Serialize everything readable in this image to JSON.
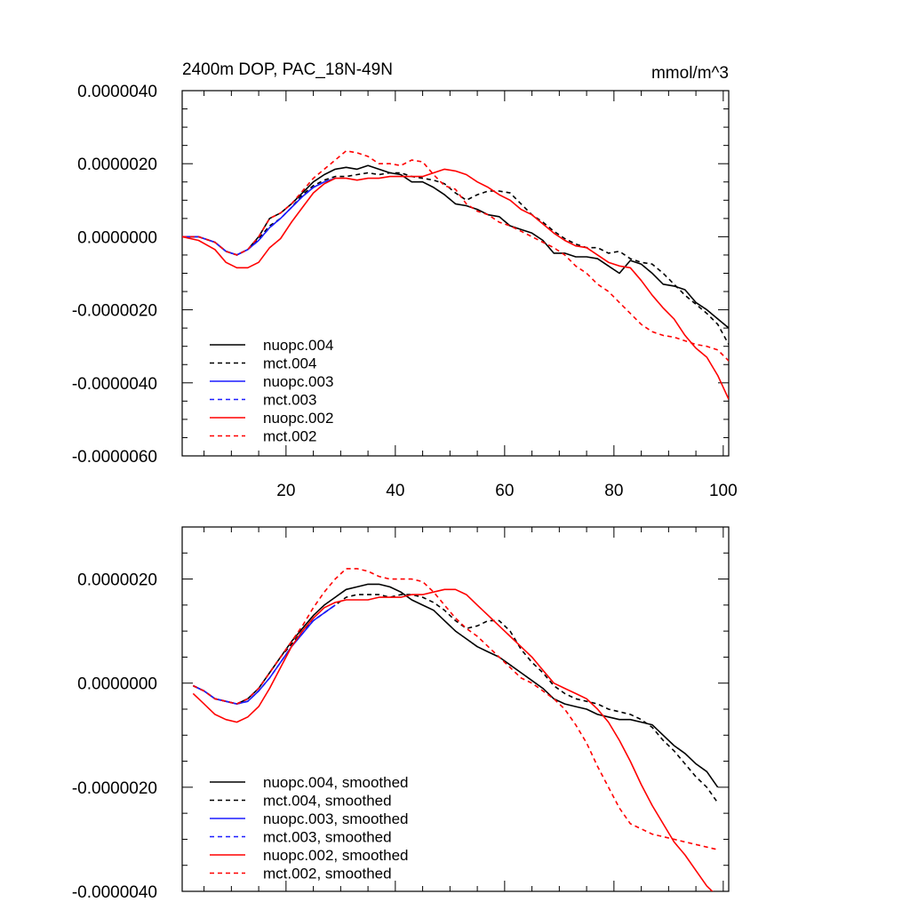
{
  "chart_data": [
    {
      "type": "line",
      "title": "2400m DOP, PAC_18N-49N",
      "units": "mmol/m^3",
      "xlabel": "",
      "ylabel": "",
      "xlim": [
        1,
        101
      ],
      "ylim": [
        -6e-06,
        4e-06
      ],
      "xticks": [
        20,
        40,
        60,
        80,
        100
      ],
      "xtick_labels": [
        "20",
        "40",
        "60",
        "80",
        "100"
      ],
      "yticks": [
        -6e-06,
        -4e-06,
        -2e-06,
        0,
        2e-06,
        4e-06
      ],
      "ytick_labels": [
        "-0.0000060",
        "-0.0000040",
        "-0.0000020",
        "0.0000000",
        "0.0000020",
        "0.0000040"
      ],
      "legend_position": "lower-left",
      "series": [
        {
          "name": "nuopc.004",
          "color": "#000000",
          "dash": "solid",
          "x": [
            1,
            4,
            7,
            9,
            11,
            13,
            15,
            17,
            19,
            21,
            23,
            25,
            27,
            29,
            31,
            33,
            35,
            37,
            39,
            41,
            43,
            45,
            47,
            49,
            51,
            53,
            55,
            57,
            59,
            61,
            63,
            65,
            67,
            69,
            71,
            73,
            75,
            77,
            79,
            81,
            83,
            85,
            87,
            89,
            91,
            93,
            95,
            97,
            99,
            101
          ],
          "values": [
            0,
            0,
            -1.5e-07,
            -4e-07,
            -5e-07,
            -3.5e-07,
            0,
            5e-07,
            6.5e-07,
            9e-07,
            1.2e-06,
            1.5e-06,
            1.7e-06,
            1.85e-06,
            1.9e-06,
            1.85e-06,
            1.95e-06,
            1.85e-06,
            1.75e-06,
            1.7e-06,
            1.5e-06,
            1.5e-06,
            1.35e-06,
            1.15e-06,
            9e-07,
            8.5e-07,
            7.5e-07,
            6e-07,
            5.5e-07,
            3e-07,
            2e-07,
            1e-07,
            -1e-07,
            -4.5e-07,
            -4.5e-07,
            -5.5e-07,
            -5.5e-07,
            -6e-07,
            -8e-07,
            -1e-06,
            -6.5e-07,
            -7.5e-07,
            -1e-06,
            -1.3e-06,
            -1.35e-06,
            -1.45e-06,
            -1.8e-06,
            -2e-06,
            -2.25e-06,
            -2.5e-06
          ]
        },
        {
          "name": "mct.004",
          "color": "#000000",
          "dash": "dash",
          "x": [
            1,
            4,
            7,
            9,
            11,
            13,
            15,
            17,
            19,
            21,
            23,
            25,
            27,
            29,
            31,
            33,
            35,
            37,
            39,
            41,
            43,
            45,
            47,
            49,
            51,
            53,
            55,
            57,
            59,
            61,
            63,
            65,
            67,
            69,
            71,
            73,
            75,
            77,
            79,
            81,
            83,
            85,
            87,
            89,
            91,
            93,
            95,
            97,
            99,
            101
          ],
          "values": [
            0,
            0,
            -1.5e-07,
            -4e-07,
            -5e-07,
            -3.5e-07,
            -5e-08,
            3e-07,
            5e-07,
            8e-07,
            1.15e-06,
            1.4e-06,
            1.55e-06,
            1.65e-06,
            1.65e-06,
            1.7e-06,
            1.75e-06,
            1.7e-06,
            1.75e-06,
            1.75e-06,
            1.65e-06,
            1.6e-06,
            1.55e-06,
            1.45e-06,
            1.2e-06,
            1e-06,
            1.15e-06,
            1.25e-06,
            1.25e-06,
            1.2e-06,
            9e-07,
            6e-07,
            4e-07,
            1.5e-07,
            -5e-08,
            -2e-07,
            -3e-07,
            -3e-07,
            -4.5e-07,
            -4e-07,
            -6e-07,
            -7e-07,
            -7.5e-07,
            -1e-06,
            -1.3e-06,
            -1.6e-06,
            -1.85e-06,
            -2.1e-06,
            -2.4e-06,
            -2.95e-06
          ]
        },
        {
          "name": "nuopc.003",
          "color": "#1c1cff",
          "dash": "solid",
          "x": [
            1,
            4,
            7,
            9,
            11,
            13,
            15,
            17,
            19,
            21,
            23,
            25,
            27,
            29
          ],
          "values": [
            0,
            0,
            -1.5e-07,
            -4e-07,
            -5e-07,
            -3.5e-07,
            -1e-07,
            2.5e-07,
            5e-07,
            8e-07,
            1.1e-06,
            1.35e-06,
            1.5e-06,
            1.6e-06
          ]
        },
        {
          "name": "mct.003",
          "color": "#1c1cff",
          "dash": "dash",
          "x": [
            1,
            4,
            7,
            9,
            11,
            13,
            15,
            17,
            19,
            21,
            23,
            25,
            27,
            29
          ],
          "values": [
            0,
            0,
            -1.5e-07,
            -4e-07,
            -5e-07,
            -3.5e-07,
            -1e-07,
            2.5e-07,
            5e-07,
            8e-07,
            1.1e-06,
            1.35e-06,
            1.5e-06,
            1.6e-06
          ]
        },
        {
          "name": "nuopc.002",
          "color": "#ff0000",
          "dash": "solid",
          "x": [
            1,
            4,
            7,
            9,
            11,
            13,
            15,
            17,
            19,
            21,
            23,
            25,
            27,
            29,
            31,
            33,
            35,
            37,
            39,
            41,
            43,
            45,
            47,
            49,
            51,
            53,
            55,
            57,
            59,
            61,
            63,
            65,
            67,
            69,
            71,
            73,
            75,
            77,
            79,
            81,
            83,
            85,
            87,
            89,
            91,
            93,
            95,
            97,
            99,
            101
          ],
          "values": [
            0,
            -1e-07,
            -3.5e-07,
            -7e-07,
            -8.5e-07,
            -8.5e-07,
            -7e-07,
            -3e-07,
            -5e-08,
            4e-07,
            8e-07,
            1.2e-06,
            1.45e-06,
            1.6e-06,
            1.6e-06,
            1.55e-06,
            1.6e-06,
            1.6e-06,
            1.65e-06,
            1.65e-06,
            1.65e-06,
            1.65e-06,
            1.75e-06,
            1.85e-06,
            1.8e-06,
            1.7e-06,
            1.5e-06,
            1.35e-06,
            1.15e-06,
            1e-06,
            7.5e-07,
            6e-07,
            3.5e-07,
            1e-07,
            -1e-07,
            -2.5e-07,
            -3e-07,
            -5e-07,
            -7e-07,
            -8e-07,
            -8.5e-07,
            -1.2e-06,
            -1.6e-06,
            -1.95e-06,
            -2.25e-06,
            -2.7e-06,
            -3.05e-06,
            -3.3e-06,
            -3.8e-06,
            -4.45e-06
          ]
        },
        {
          "name": "mct.002",
          "color": "#ff0000",
          "dash": "dash",
          "x": [
            1,
            4,
            7,
            9,
            11,
            13,
            15,
            17,
            19,
            21,
            23,
            25,
            27,
            29,
            31,
            33,
            35,
            37,
            39,
            41,
            43,
            45,
            47,
            49,
            51,
            53,
            55,
            57,
            59,
            61,
            63,
            65,
            67,
            69,
            71,
            73,
            75,
            77,
            79,
            81,
            83,
            85,
            87,
            89,
            91,
            93,
            95,
            97,
            99,
            101
          ],
          "values": [
            0,
            0,
            -1.5e-07,
            -4e-07,
            -5e-07,
            -3.5e-07,
            0,
            5e-07,
            6.5e-07,
            9e-07,
            1.25e-06,
            1.6e-06,
            1.85e-06,
            2.1e-06,
            2.35e-06,
            2.3e-06,
            2.2e-06,
            2e-06,
            2e-06,
            1.95e-06,
            2.1e-06,
            2.05e-06,
            1.7e-06,
            1.4e-06,
            1.3e-06,
            9e-07,
            7e-07,
            6e-07,
            4e-07,
            3e-07,
            1.5e-07,
            0,
            -1.5e-07,
            -3e-07,
            -5e-07,
            -8e-07,
            -1e-06,
            -1.3e-06,
            -1.5e-06,
            -1.8e-06,
            -2.1e-06,
            -2.4e-06,
            -2.6e-06,
            -2.7e-06,
            -2.75e-06,
            -2.85e-06,
            -2.95e-06,
            -3e-06,
            -3.1e-06,
            -3.4e-06
          ]
        }
      ]
    },
    {
      "type": "line",
      "title": "",
      "xlabel": "",
      "ylabel": "",
      "xlim": [
        1,
        101
      ],
      "ylim": [
        -4e-06,
        3e-06
      ],
      "xticks": [
        20,
        40,
        60,
        80,
        100
      ],
      "yticks": [
        -4e-06,
        -2e-06,
        0,
        2e-06
      ],
      "ytick_labels": [
        "-0.0000040",
        "-0.0000020",
        "0.0000000",
        "0.0000020"
      ],
      "legend_position": "lower-left",
      "series": [
        {
          "name": "nuopc.004, smoothed",
          "color": "#000000",
          "dash": "solid",
          "x": [
            3,
            5,
            7,
            9,
            11,
            13,
            15,
            17,
            19,
            21,
            23,
            25,
            27,
            29,
            31,
            33,
            35,
            37,
            39,
            41,
            43,
            45,
            47,
            49,
            51,
            53,
            55,
            57,
            59,
            61,
            63,
            65,
            67,
            69,
            71,
            73,
            75,
            77,
            79,
            81,
            83,
            85,
            87,
            89,
            91,
            93,
            95,
            97,
            99
          ],
          "values": [
            -5e-08,
            -1.5e-07,
            -3e-07,
            -3.5e-07,
            -4e-07,
            -3e-07,
            -1e-07,
            2e-07,
            5e-07,
            8e-07,
            1.05e-06,
            1.3e-06,
            1.5e-06,
            1.65e-06,
            1.8e-06,
            1.85e-06,
            1.9e-06,
            1.9e-06,
            1.85e-06,
            1.75e-06,
            1.6e-06,
            1.5e-06,
            1.4e-06,
            1.2e-06,
            1e-06,
            8.5e-07,
            7e-07,
            6e-07,
            5e-07,
            3.5e-07,
            2e-07,
            5e-08,
            -1e-07,
            -3e-07,
            -4e-07,
            -4.5e-07,
            -5e-07,
            -6e-07,
            -6.5e-07,
            -7e-07,
            -7e-07,
            -7.5e-07,
            -8e-07,
            -1e-06,
            -1.2e-06,
            -1.35e-06,
            -1.55e-06,
            -1.7e-06,
            -2e-06
          ]
        },
        {
          "name": "mct.004, smoothed",
          "color": "#000000",
          "dash": "dash",
          "x": [
            3,
            5,
            7,
            9,
            11,
            13,
            15,
            17,
            19,
            21,
            23,
            25,
            27,
            29,
            31,
            33,
            35,
            37,
            39,
            41,
            43,
            45,
            47,
            49,
            51,
            53,
            55,
            57,
            59,
            61,
            63,
            65,
            67,
            69,
            71,
            73,
            75,
            77,
            79,
            81,
            83,
            85,
            87,
            89,
            91,
            93,
            95,
            97,
            99
          ],
          "values": [
            -5e-08,
            -1.5e-07,
            -3e-07,
            -3.5e-07,
            -4e-07,
            -3e-07,
            -1e-07,
            2e-07,
            5e-07,
            7.5e-07,
            1e-06,
            1.2e-06,
            1.35e-06,
            1.5e-06,
            1.65e-06,
            1.7e-06,
            1.7e-06,
            1.7e-06,
            1.65e-06,
            1.7e-06,
            1.7e-06,
            1.65e-06,
            1.55e-06,
            1.4e-06,
            1.2e-06,
            1.05e-06,
            1.1e-06,
            1.2e-06,
            1.2e-06,
            1e-06,
            6.5e-07,
            4e-07,
            2e-07,
            -5e-08,
            -2e-07,
            -3e-07,
            -3.5e-07,
            -4e-07,
            -5e-07,
            -5.5e-07,
            -6e-07,
            -7e-07,
            -8.5e-07,
            -1.1e-06,
            -1.3e-06,
            -1.55e-06,
            -1.8e-06,
            -2e-06,
            -2.3e-06
          ]
        },
        {
          "name": "nuopc.003, smoothed",
          "color": "#1c1cff",
          "dash": "solid",
          "x": [
            3,
            5,
            7,
            9,
            11,
            13,
            15,
            17,
            19,
            21,
            23,
            25,
            27,
            29
          ],
          "values": [
            -5e-08,
            -1.5e-07,
            -3e-07,
            -3.5e-07,
            -4e-07,
            -3.5e-07,
            -1.5e-07,
            1e-07,
            4e-07,
            7e-07,
            9.5e-07,
            1.2e-06,
            1.35e-06,
            1.5e-06
          ]
        },
        {
          "name": "mct.003, smoothed",
          "color": "#1c1cff",
          "dash": "dash",
          "x": [
            3,
            5,
            7,
            9,
            11,
            13,
            15,
            17,
            19,
            21,
            23,
            25,
            27,
            29
          ],
          "values": [
            -5e-08,
            -1.5e-07,
            -3e-07,
            -3.5e-07,
            -4e-07,
            -3.5e-07,
            -1.5e-07,
            1e-07,
            4e-07,
            7e-07,
            9.5e-07,
            1.2e-06,
            1.35e-06,
            1.5e-06
          ]
        },
        {
          "name": "nuopc.002, smoothed",
          "color": "#ff0000",
          "dash": "solid",
          "x": [
            3,
            5,
            7,
            9,
            11,
            13,
            15,
            17,
            19,
            21,
            23,
            25,
            27,
            29,
            31,
            33,
            35,
            37,
            39,
            41,
            43,
            45,
            47,
            49,
            51,
            53,
            55,
            57,
            59,
            61,
            63,
            65,
            67,
            69,
            71,
            73,
            75,
            77,
            79,
            81,
            83,
            85,
            87,
            89,
            91,
            93,
            95,
            97,
            99
          ],
          "values": [
            -2e-07,
            -4e-07,
            -6e-07,
            -7e-07,
            -7.5e-07,
            -6.5e-07,
            -4.5e-07,
            -1e-07,
            3e-07,
            7e-07,
            1e-06,
            1.25e-06,
            1.45e-06,
            1.55e-06,
            1.6e-06,
            1.6e-06,
            1.6e-06,
            1.65e-06,
            1.65e-06,
            1.65e-06,
            1.7e-06,
            1.7e-06,
            1.75e-06,
            1.8e-06,
            1.8e-06,
            1.7e-06,
            1.5e-06,
            1.3e-06,
            1.1e-06,
            9e-07,
            7e-07,
            5e-07,
            2.5e-07,
            0,
            -1e-07,
            -2e-07,
            -3e-07,
            -5e-07,
            -7.5e-07,
            -1.1e-06,
            -1.5e-06,
            -1.95e-06,
            -2.35e-06,
            -2.7e-06,
            -3.05e-06,
            -3.3e-06,
            -3.6e-06,
            -3.9e-06,
            -4.1e-06
          ]
        },
        {
          "name": "mct.002, smoothed",
          "color": "#ff0000",
          "dash": "dash",
          "x": [
            3,
            5,
            7,
            9,
            11,
            13,
            15,
            17,
            19,
            21,
            23,
            25,
            27,
            29,
            31,
            33,
            35,
            37,
            39,
            41,
            43,
            45,
            47,
            49,
            51,
            53,
            55,
            57,
            59,
            61,
            63,
            65,
            67,
            69,
            71,
            73,
            75,
            77,
            79,
            81,
            83,
            85,
            87,
            89,
            91,
            93,
            95,
            97,
            99
          ],
          "values": [
            -5e-08,
            -1.5e-07,
            -3e-07,
            -3.5e-07,
            -4e-07,
            -3e-07,
            -1e-07,
            2e-07,
            5e-07,
            8e-07,
            1.1e-06,
            1.45e-06,
            1.75e-06,
            2e-06,
            2.2e-06,
            2.2e-06,
            2.15e-06,
            2.05e-06,
            2e-06,
            2e-06,
            2e-06,
            1.95e-06,
            1.75e-06,
            1.5e-06,
            1.25e-06,
            1.05e-06,
            9e-07,
            7e-07,
            5e-07,
            3e-07,
            1e-07,
            0,
            -1.5e-07,
            -3e-07,
            -5e-07,
            -8e-07,
            -1.15e-06,
            -1.6e-06,
            -2e-06,
            -2.4e-06,
            -2.7e-06,
            -2.8e-06,
            -2.9e-06,
            -2.95e-06,
            -3e-06,
            -3.05e-06,
            -3.1e-06,
            -3.15e-06,
            -3.2e-06
          ]
        }
      ]
    }
  ]
}
